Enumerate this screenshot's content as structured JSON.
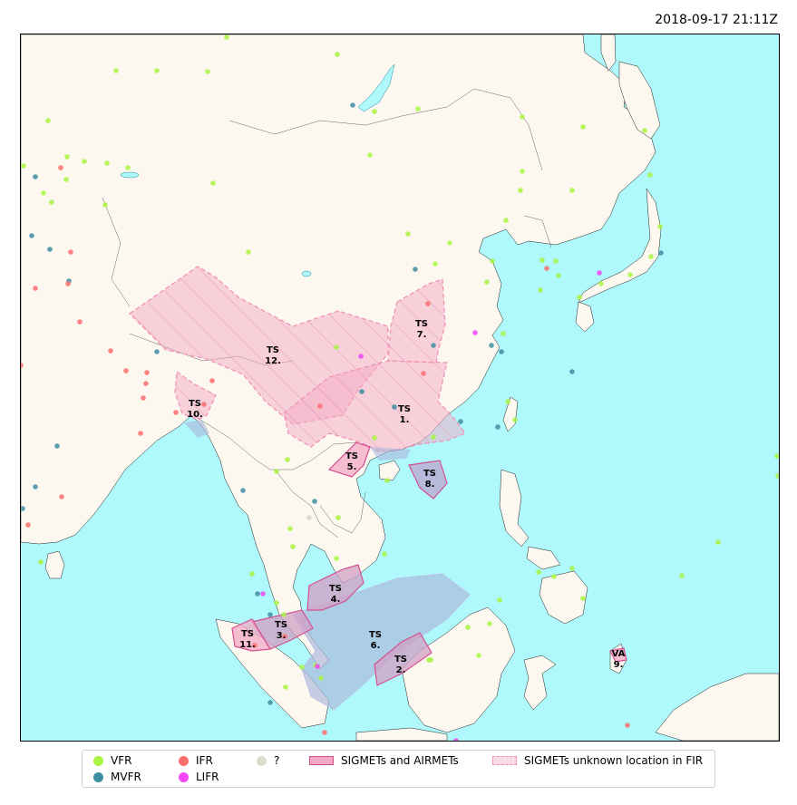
{
  "timestamp": "2018-09-17 21:11Z",
  "colors": {
    "ocean": "#aff8fb",
    "land": "#fcf7ef",
    "VFR": "#a9f542",
    "MVFR": "#3f8ea1",
    "IFR": "#fb6f6f",
    "LIFR": "#f147f5",
    "unknown": "#dcdcd0",
    "sigmet_fill": "#f3a9c4",
    "sigmet_edge": "#d44f8f",
    "overlap": "#a9b5da"
  },
  "legend": {
    "vfr": "VFR",
    "mvfr": "MVFR",
    "ifr": "IFR",
    "lifr": "LIFR",
    "unknown": "?",
    "sigmets": "SIGMETs and AIRMETs",
    "sigmets_unknown": "SIGMETs unknown location in FIR"
  },
  "advisories": [
    {
      "type": "TS",
      "id": "1."
    },
    {
      "type": "TS",
      "id": "2."
    },
    {
      "type": "TS",
      "id": "3."
    },
    {
      "type": "TS",
      "id": "4."
    },
    {
      "type": "TS",
      "id": "5."
    },
    {
      "type": "TS",
      "id": "6."
    },
    {
      "type": "TS",
      "id": "7."
    },
    {
      "type": "TS",
      "id": "8."
    },
    {
      "type": "VA",
      "id": "9."
    },
    {
      "type": "TS",
      "id": "10."
    },
    {
      "type": "TS",
      "id": "11."
    },
    {
      "type": "TS",
      "id": "12."
    }
  ]
}
